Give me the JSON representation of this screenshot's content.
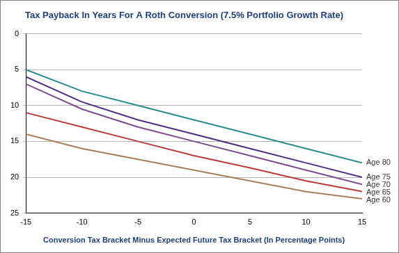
{
  "chart_data": {
    "type": "line",
    "title": "Tax Payback In Years For A Roth Conversion (7.5% Portfolio Growth Rate)",
    "x_label": "Conversion Tax Bracket Minus Expected Future Tax Bracket (In Percentage Points)",
    "x": [
      -15,
      -10,
      -5,
      0,
      5,
      10,
      15
    ],
    "series": [
      {
        "name": "Age 80",
        "color": "#2a8a8c",
        "values": [
          5,
          8,
          10,
          12,
          14,
          16,
          18
        ]
      },
      {
        "name": "Age 75",
        "color": "#4a2f7f",
        "values": [
          6,
          9.5,
          12,
          14,
          16,
          18,
          20
        ]
      },
      {
        "name": "Age 70",
        "color": "#7a4a8c",
        "values": [
          7,
          10.5,
          13,
          15,
          17,
          19,
          21
        ]
      },
      {
        "name": "Age 65",
        "color": "#b83a3a",
        "values": [
          11,
          13,
          15,
          17,
          18.7,
          20.5,
          22
        ]
      },
      {
        "name": "Age 60",
        "color": "#a67d5a",
        "values": [
          14,
          16,
          17.5,
          19,
          20.5,
          22,
          23
        ]
      }
    ],
    "xlim": [
      -15,
      15
    ],
    "xticks": [
      -15,
      -10,
      -5,
      0,
      5,
      10,
      15
    ],
    "ylim": [
      25,
      0
    ],
    "yticks": [
      0,
      5,
      10,
      15,
      20,
      25
    ],
    "grid": true
  }
}
